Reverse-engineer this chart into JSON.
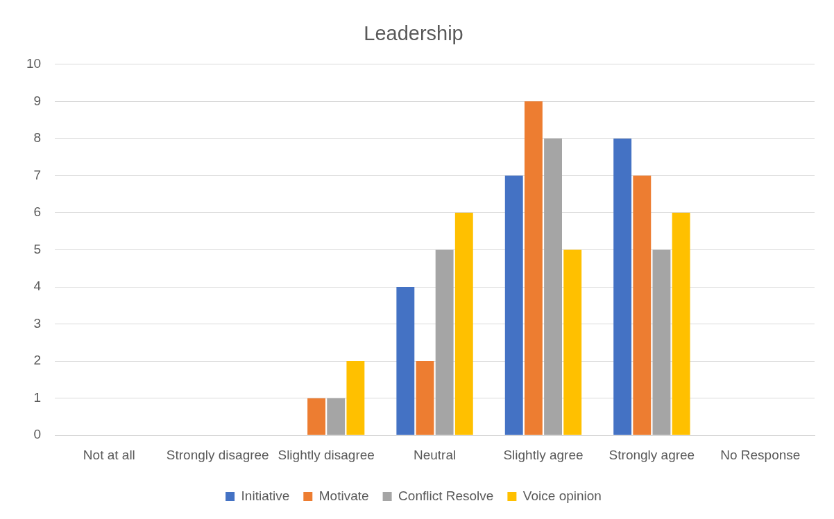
{
  "chart_data": {
    "type": "bar",
    "title": "Leadership",
    "categories": [
      "Not at all",
      "Strongly disagree",
      "Slightly disagree",
      "Neutral",
      "Slightly agree",
      "Strongly agree",
      "No Response"
    ],
    "series": [
      {
        "name": "Initiative",
        "color": "#4472c4",
        "values": [
          0,
          0,
          0,
          4,
          7,
          8,
          0
        ]
      },
      {
        "name": "Motivate",
        "color": "#ed7d31",
        "values": [
          0,
          0,
          1,
          2,
          9,
          7,
          0
        ]
      },
      {
        "name": "Conflict Resolve",
        "color": "#a5a5a5",
        "values": [
          0,
          0,
          1,
          5,
          8,
          5,
          0
        ]
      },
      {
        "name": "Voice opinion",
        "color": "#ffc000",
        "values": [
          0,
          0,
          2,
          6,
          5,
          6,
          0
        ]
      }
    ],
    "ylim": [
      0,
      10
    ],
    "yticks": [
      0,
      1,
      2,
      3,
      4,
      5,
      6,
      7,
      8,
      9,
      10
    ],
    "grid": "y",
    "legend": "bottom"
  }
}
